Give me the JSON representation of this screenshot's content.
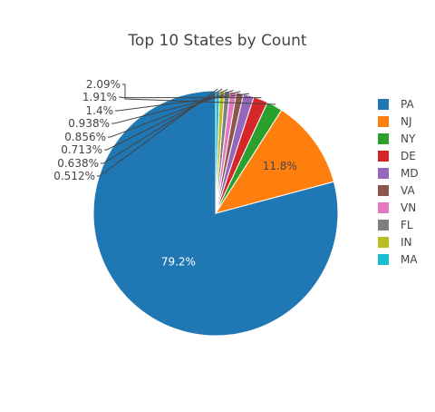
{
  "chart_data": {
    "type": "pie",
    "title": "Top 10 States by Count",
    "labels": [
      "PA",
      "NJ",
      "NY",
      "DE",
      "MD",
      "VA",
      "VN",
      "FL",
      "IN",
      "MA"
    ],
    "values": [
      79.2,
      11.8,
      2.09,
      1.91,
      1.4,
      0.938,
      0.856,
      0.713,
      0.638,
      0.512
    ],
    "percent_labels": [
      "79.2%",
      "11.8%",
      "2.09%",
      "1.91%",
      "1.4%",
      "0.938%",
      "0.856%",
      "0.713%",
      "0.638%",
      "0.512%"
    ],
    "colors": [
      "#1f77b4",
      "#ff7f0e",
      "#2ca02c",
      "#d62728",
      "#9467bd",
      "#8c564b",
      "#e377c2",
      "#7f7f7f",
      "#bcbd22",
      "#17becf"
    ],
    "direction": "counterclockwise",
    "legend_position": "right"
  }
}
